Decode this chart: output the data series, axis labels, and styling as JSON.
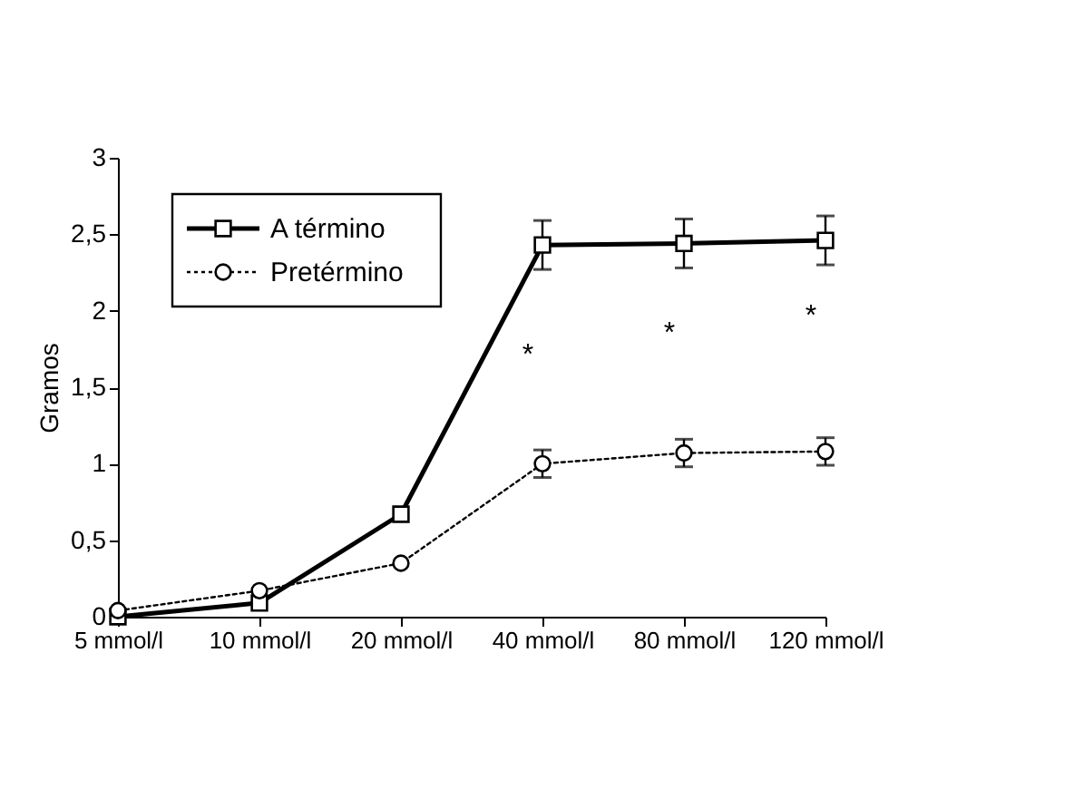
{
  "chart_data": {
    "type": "line",
    "ylabel": "Gramos",
    "categories": [
      "5 mmol/l",
      "10 mmol/l",
      "20 mmol/l",
      "40 mmol/l",
      "80 mmol/l",
      "120 mmol/l"
    ],
    "series": [
      {
        "name": "A término",
        "color": "#000000",
        "marker": "square",
        "line_style": "solid",
        "values": [
          0,
          0.09,
          0.67,
          2.43,
          2.44,
          2.46
        ],
        "errors": [
          null,
          null,
          null,
          0.16,
          0.16,
          0.16
        ]
      },
      {
        "name": "Pretérmino",
        "color": "#000000",
        "marker": "circle",
        "line_style": "dotted",
        "values": [
          0.04,
          0.17,
          0.35,
          1.0,
          1.07,
          1.08
        ],
        "errors": [
          null,
          null,
          null,
          0.09,
          0.09,
          0.09
        ]
      }
    ],
    "ylim": [
      0,
      3
    ],
    "yticks": [
      0,
      {
        "value": 0.5,
        "label": "0,5"
      },
      1,
      {
        "value": 1.5,
        "label": "1,5"
      },
      2,
      {
        "value": 2.5,
        "label": "2,5"
      },
      3
    ],
    "annotations": [
      "*",
      "*",
      "*"
    ],
    "grid": false,
    "legend": "top left"
  }
}
